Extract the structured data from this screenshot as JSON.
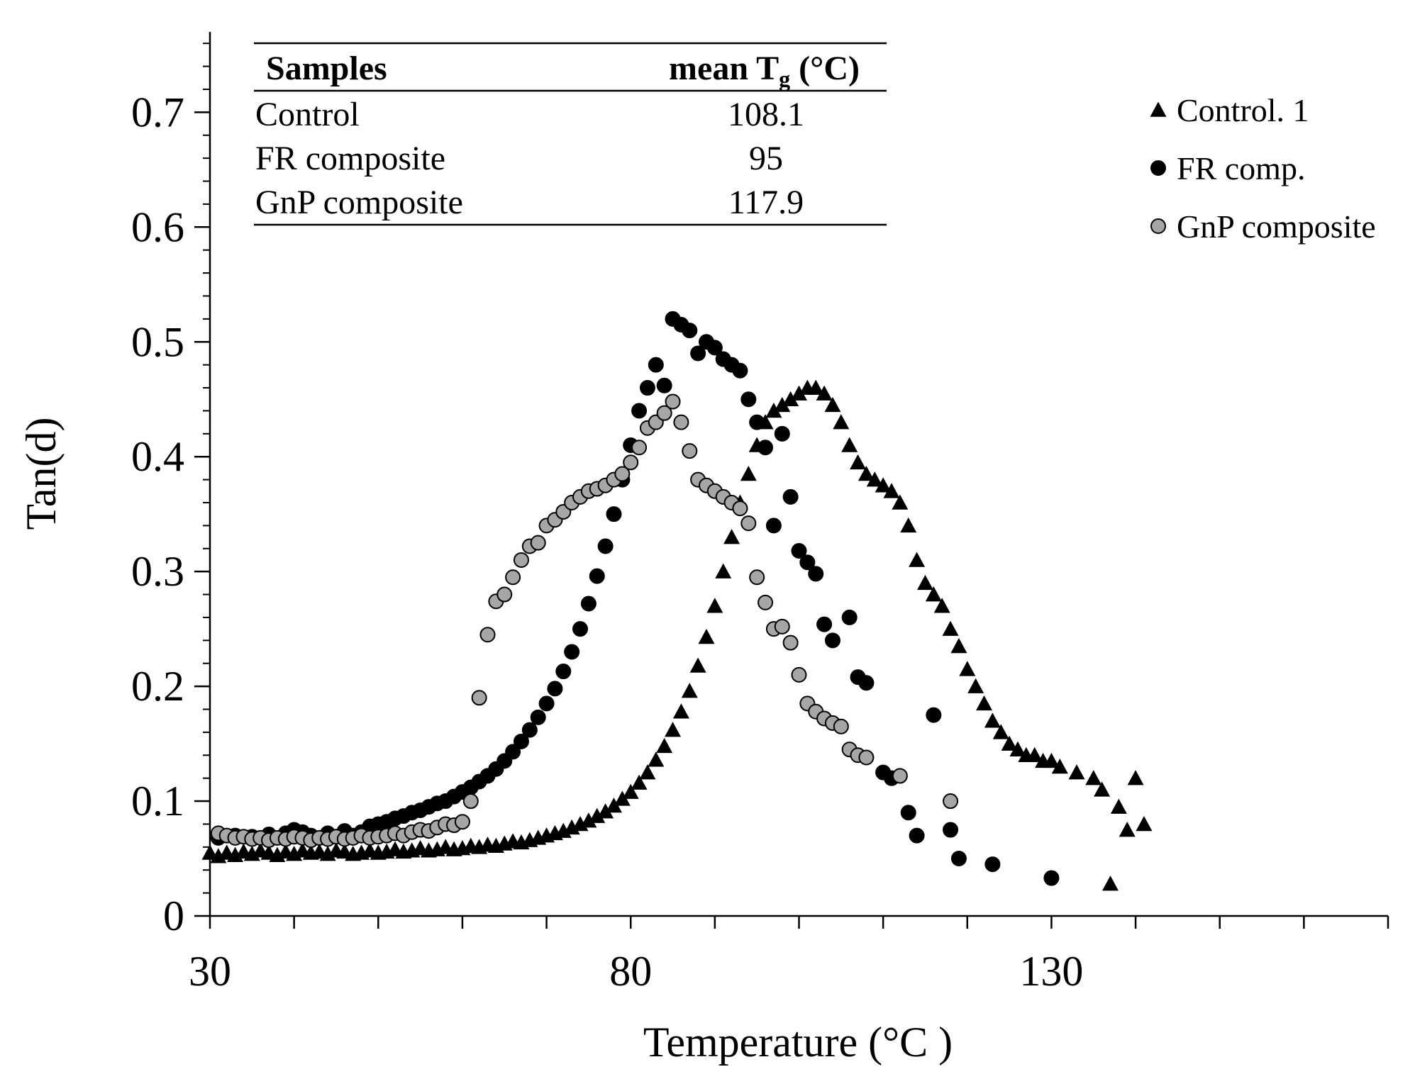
{
  "chart_data": {
    "type": "scatter",
    "xlabel": "Temperature (°C )",
    "ylabel": "Tan(d)",
    "xlim": [
      30,
      170
    ],
    "ylim": [
      0,
      0.77
    ],
    "x_ticks": [
      30,
      80,
      130
    ],
    "x_minor_step": 10,
    "y_ticks": [
      0,
      0.1,
      0.2,
      0.3,
      0.4,
      0.5,
      0.6,
      0.7
    ],
    "y_tick_labels": [
      "0",
      "0.1",
      "0.2",
      "0.3",
      "0.4",
      "0.5",
      "0.6",
      "0.7"
    ],
    "y_minor_step": 0.02,
    "grid": false,
    "legend_position": "top-right",
    "inset_table": {
      "headers": [
        "Samples",
        "mean T",
        "g",
        " (°C)"
      ],
      "rows": [
        {
          "sample": "Control",
          "tg": "108.1"
        },
        {
          "sample": "FR composite",
          "tg": "95"
        },
        {
          "sample": "GnP composite",
          "tg": "117.9"
        }
      ]
    },
    "series": [
      {
        "name": "Control. 1",
        "marker": "triangle",
        "color": "#000000",
        "points": [
          [
            30,
            0.055
          ],
          [
            31,
            0.052
          ],
          [
            32,
            0.055
          ],
          [
            33,
            0.053
          ],
          [
            34,
            0.056
          ],
          [
            35,
            0.054
          ],
          [
            36,
            0.057
          ],
          [
            37,
            0.055
          ],
          [
            38,
            0.053
          ],
          [
            39,
            0.056
          ],
          [
            40,
            0.054
          ],
          [
            41,
            0.057
          ],
          [
            42,
            0.055
          ],
          [
            43,
            0.056
          ],
          [
            44,
            0.054
          ],
          [
            45,
            0.057
          ],
          [
            46,
            0.056
          ],
          [
            47,
            0.054
          ],
          [
            48,
            0.055
          ],
          [
            49,
            0.057
          ],
          [
            50,
            0.055
          ],
          [
            51,
            0.056
          ],
          [
            52,
            0.058
          ],
          [
            53,
            0.056
          ],
          [
            54,
            0.057
          ],
          [
            55,
            0.059
          ],
          [
            56,
            0.057
          ],
          [
            57,
            0.058
          ],
          [
            58,
            0.06
          ],
          [
            59,
            0.058
          ],
          [
            60,
            0.059
          ],
          [
            61,
            0.061
          ],
          [
            62,
            0.06
          ],
          [
            63,
            0.062
          ],
          [
            64,
            0.061
          ],
          [
            65,
            0.063
          ],
          [
            66,
            0.065
          ],
          [
            67,
            0.064
          ],
          [
            68,
            0.066
          ],
          [
            69,
            0.068
          ],
          [
            70,
            0.07
          ],
          [
            71,
            0.072
          ],
          [
            72,
            0.074
          ],
          [
            73,
            0.077
          ],
          [
            74,
            0.08
          ],
          [
            75,
            0.083
          ],
          [
            76,
            0.087
          ],
          [
            77,
            0.091
          ],
          [
            78,
            0.096
          ],
          [
            79,
            0.102
          ],
          [
            80,
            0.108
          ],
          [
            81,
            0.116
          ],
          [
            82,
            0.125
          ],
          [
            83,
            0.136
          ],
          [
            84,
            0.148
          ],
          [
            85,
            0.162
          ],
          [
            86,
            0.178
          ],
          [
            87,
            0.196
          ],
          [
            88,
            0.218
          ],
          [
            89,
            0.243
          ],
          [
            90,
            0.27
          ],
          [
            91,
            0.3
          ],
          [
            92,
            0.33
          ],
          [
            93,
            0.36
          ],
          [
            94,
            0.385
          ],
          [
            95,
            0.41
          ],
          [
            96,
            0.43
          ],
          [
            97,
            0.44
          ],
          [
            98,
            0.445
          ],
          [
            99,
            0.45
          ],
          [
            100,
            0.455
          ],
          [
            101,
            0.46
          ],
          [
            102,
            0.46
          ],
          [
            103,
            0.455
          ],
          [
            104,
            0.445
          ],
          [
            105,
            0.43
          ],
          [
            106,
            0.41
          ],
          [
            107,
            0.395
          ],
          [
            108,
            0.385
          ],
          [
            109,
            0.38
          ],
          [
            110,
            0.375
          ],
          [
            111,
            0.37
          ],
          [
            112,
            0.36
          ],
          [
            113,
            0.34
          ],
          [
            114,
            0.31
          ],
          [
            115,
            0.29
          ],
          [
            116,
            0.28
          ],
          [
            117,
            0.27
          ],
          [
            118,
            0.25
          ],
          [
            119,
            0.235
          ],
          [
            120,
            0.215
          ],
          [
            121,
            0.2
          ],
          [
            122,
            0.185
          ],
          [
            123,
            0.17
          ],
          [
            124,
            0.16
          ],
          [
            125,
            0.15
          ],
          [
            126,
            0.145
          ],
          [
            127,
            0.14
          ],
          [
            128,
            0.14
          ],
          [
            129,
            0.135
          ],
          [
            130,
            0.135
          ],
          [
            131,
            0.13
          ],
          [
            133,
            0.125
          ],
          [
            135,
            0.12
          ],
          [
            136,
            0.11
          ],
          [
            137,
            0.028
          ],
          [
            138,
            0.095
          ],
          [
            139,
            0.075
          ],
          [
            140,
            0.12
          ],
          [
            141,
            0.08
          ]
        ]
      },
      {
        "name": "FR comp.",
        "marker": "circle",
        "color": "#000000",
        "points": [
          [
            31,
            0.068
          ],
          [
            33,
            0.07
          ],
          [
            35,
            0.069
          ],
          [
            37,
            0.071
          ],
          [
            39,
            0.072
          ],
          [
            40,
            0.075
          ],
          [
            41,
            0.073
          ],
          [
            42,
            0.07
          ],
          [
            43,
            0.068
          ],
          [
            44,
            0.072
          ],
          [
            45,
            0.069
          ],
          [
            46,
            0.074
          ],
          [
            47,
            0.07
          ],
          [
            48,
            0.073
          ],
          [
            49,
            0.078
          ],
          [
            50,
            0.08
          ],
          [
            51,
            0.082
          ],
          [
            52,
            0.085
          ],
          [
            53,
            0.087
          ],
          [
            54,
            0.09
          ],
          [
            55,
            0.092
          ],
          [
            56,
            0.095
          ],
          [
            57,
            0.098
          ],
          [
            58,
            0.1
          ],
          [
            59,
            0.104
          ],
          [
            60,
            0.108
          ],
          [
            61,
            0.112
          ],
          [
            62,
            0.117
          ],
          [
            63,
            0.122
          ],
          [
            64,
            0.128
          ],
          [
            65,
            0.135
          ],
          [
            66,
            0.143
          ],
          [
            67,
            0.152
          ],
          [
            68,
            0.162
          ],
          [
            69,
            0.173
          ],
          [
            70,
            0.185
          ],
          [
            71,
            0.198
          ],
          [
            72,
            0.213
          ],
          [
            73,
            0.23
          ],
          [
            74,
            0.25
          ],
          [
            75,
            0.272
          ],
          [
            76,
            0.296
          ],
          [
            77,
            0.322
          ],
          [
            78,
            0.35
          ],
          [
            79,
            0.38
          ],
          [
            80,
            0.41
          ],
          [
            81,
            0.44
          ],
          [
            82,
            0.46
          ],
          [
            83,
            0.48
          ],
          [
            84,
            0.462
          ],
          [
            85,
            0.52
          ],
          [
            86,
            0.515
          ],
          [
            87,
            0.51
          ],
          [
            88,
            0.49
          ],
          [
            89,
            0.5
          ],
          [
            90,
            0.495
          ],
          [
            91,
            0.485
          ],
          [
            92,
            0.48
          ],
          [
            93,
            0.475
          ],
          [
            94,
            0.45
          ],
          [
            95,
            0.43
          ],
          [
            96,
            0.408
          ],
          [
            97,
            0.34
          ],
          [
            98,
            0.42
          ],
          [
            99,
            0.365
          ],
          [
            100,
            0.318
          ],
          [
            101,
            0.308
          ],
          [
            102,
            0.298
          ],
          [
            103,
            0.254
          ],
          [
            104,
            0.24
          ],
          [
            106,
            0.26
          ],
          [
            107,
            0.208
          ],
          [
            108,
            0.203
          ],
          [
            110,
            0.125
          ],
          [
            111,
            0.12
          ],
          [
            113,
            0.09
          ],
          [
            114,
            0.07
          ],
          [
            116,
            0.175
          ],
          [
            118,
            0.075
          ],
          [
            119,
            0.05
          ],
          [
            123,
            0.045
          ],
          [
            130,
            0.033
          ]
        ]
      },
      {
        "name": "GnP composite",
        "marker": "circle",
        "color": "#a6a6a6",
        "points": [
          [
            31,
            0.072
          ],
          [
            32,
            0.07
          ],
          [
            33,
            0.068
          ],
          [
            34,
            0.069
          ],
          [
            35,
            0.067
          ],
          [
            36,
            0.068
          ],
          [
            37,
            0.066
          ],
          [
            38,
            0.068
          ],
          [
            39,
            0.067
          ],
          [
            40,
            0.069
          ],
          [
            41,
            0.068
          ],
          [
            42,
            0.066
          ],
          [
            43,
            0.068
          ],
          [
            44,
            0.067
          ],
          [
            45,
            0.069
          ],
          [
            46,
            0.067
          ],
          [
            47,
            0.068
          ],
          [
            48,
            0.07
          ],
          [
            49,
            0.068
          ],
          [
            50,
            0.069
          ],
          [
            51,
            0.07
          ],
          [
            52,
            0.072
          ],
          [
            53,
            0.07
          ],
          [
            54,
            0.073
          ],
          [
            55,
            0.075
          ],
          [
            56,
            0.074
          ],
          [
            57,
            0.077
          ],
          [
            58,
            0.08
          ],
          [
            59,
            0.079
          ],
          [
            60,
            0.082
          ],
          [
            61,
            0.1
          ],
          [
            62,
            0.19
          ],
          [
            63,
            0.245
          ],
          [
            64,
            0.274
          ],
          [
            65,
            0.28
          ],
          [
            66,
            0.295
          ],
          [
            67,
            0.31
          ],
          [
            68,
            0.322
          ],
          [
            69,
            0.325
          ],
          [
            70,
            0.34
          ],
          [
            71,
            0.345
          ],
          [
            72,
            0.352
          ],
          [
            73,
            0.36
          ],
          [
            74,
            0.365
          ],
          [
            75,
            0.37
          ],
          [
            76,
            0.372
          ],
          [
            77,
            0.375
          ],
          [
            78,
            0.38
          ],
          [
            79,
            0.385
          ],
          [
            80,
            0.395
          ],
          [
            81,
            0.408
          ],
          [
            82,
            0.425
          ],
          [
            83,
            0.43
          ],
          [
            84,
            0.438
          ],
          [
            85,
            0.448
          ],
          [
            86,
            0.43
          ],
          [
            87,
            0.405
          ],
          [
            88,
            0.38
          ],
          [
            89,
            0.375
          ],
          [
            90,
            0.37
          ],
          [
            91,
            0.365
          ],
          [
            92,
            0.36
          ],
          [
            93,
            0.355
          ],
          [
            94,
            0.342
          ],
          [
            95,
            0.295
          ],
          [
            96,
            0.273
          ],
          [
            97,
            0.25
          ],
          [
            98,
            0.252
          ],
          [
            99,
            0.238
          ],
          [
            100,
            0.21
          ],
          [
            101,
            0.185
          ],
          [
            102,
            0.178
          ],
          [
            103,
            0.172
          ],
          [
            104,
            0.168
          ],
          [
            105,
            0.165
          ],
          [
            106,
            0.145
          ],
          [
            107,
            0.14
          ],
          [
            108,
            0.138
          ],
          [
            112,
            0.122
          ],
          [
            118,
            0.1
          ]
        ]
      }
    ]
  }
}
